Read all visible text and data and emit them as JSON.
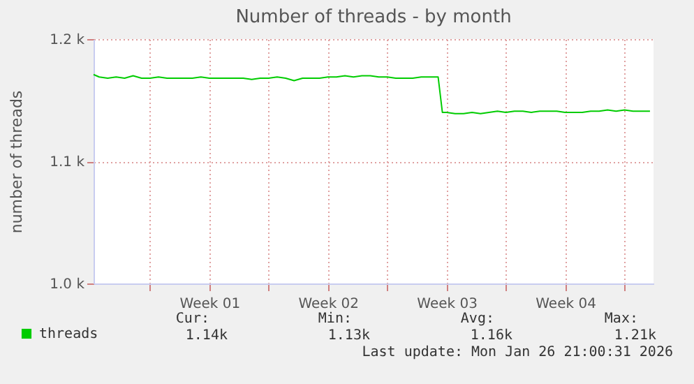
{
  "chart_data": {
    "type": "line",
    "title": "Number of threads - by month",
    "ylabel": "number of threads",
    "x": [
      "2025-12-25T16:00",
      "2025-12-26T00:00",
      "2025-12-26T12:00",
      "2025-12-27T00:00",
      "2025-12-27T12:00",
      "2025-12-28T00:00",
      "2025-12-28T12:00",
      "2025-12-29T00:00",
      "2025-12-29T12:00",
      "2025-12-30T00:00",
      "2025-12-30T12:00",
      "2025-12-31T00:00",
      "2025-12-31T12:00",
      "2026-01-01T00:00",
      "2026-01-01T12:00",
      "2026-01-02T00:00",
      "2026-01-02T12:00",
      "2026-01-03T00:00",
      "2026-01-03T12:00",
      "2026-01-04T00:00",
      "2026-01-04T12:00",
      "2026-01-05T00:00",
      "2026-01-05T12:00",
      "2026-01-06T00:00",
      "2026-01-06T12:00",
      "2026-01-07T00:00",
      "2026-01-07T12:00",
      "2026-01-08T00:00",
      "2026-01-08T12:00",
      "2026-01-09T00:00",
      "2026-01-09T12:00",
      "2026-01-10T00:00",
      "2026-01-10T12:00",
      "2026-01-11T00:00",
      "2026-01-11T12:00",
      "2026-01-12T00:00",
      "2026-01-12T12:00",
      "2026-01-13T00:00",
      "2026-01-13T12:00",
      "2026-01-14T00:00",
      "2026-01-14T12:00",
      "2026-01-15T00:00",
      "2026-01-15T06:00",
      "2026-01-15T12:00",
      "2026-01-16T00:00",
      "2026-01-16T12:00",
      "2026-01-17T00:00",
      "2026-01-17T12:00",
      "2026-01-18T00:00",
      "2026-01-18T12:00",
      "2026-01-19T00:00",
      "2026-01-19T12:00",
      "2026-01-20T00:00",
      "2026-01-20T12:00",
      "2026-01-21T00:00",
      "2026-01-21T12:00",
      "2026-01-22T00:00",
      "2026-01-22T12:00",
      "2026-01-23T00:00",
      "2026-01-23T12:00",
      "2026-01-24T00:00",
      "2026-01-24T12:00",
      "2026-01-25T00:00",
      "2026-01-25T12:00",
      "2026-01-26T00:00",
      "2026-01-26T12:00",
      "2026-01-27T00:00",
      "2026-01-27T12:00"
    ],
    "series": [
      {
        "name": "threads",
        "color": "#00cc00",
        "values": [
          1171,
          1169,
          1168,
          1169,
          1168,
          1170,
          1168,
          1168,
          1169,
          1168,
          1168,
          1168,
          1168,
          1169,
          1168,
          1168,
          1168,
          1168,
          1168,
          1167,
          1168,
          1168,
          1169,
          1168,
          1166,
          1168,
          1168,
          1168,
          1169,
          1169,
          1170,
          1169,
          1170,
          1170,
          1169,
          1169,
          1168,
          1168,
          1168,
          1169,
          1169,
          1169,
          1140,
          1140,
          1139,
          1139,
          1140,
          1139,
          1140,
          1141,
          1140,
          1141,
          1141,
          1140,
          1141,
          1141,
          1141,
          1140,
          1140,
          1140,
          1141,
          1141,
          1142,
          1141,
          1142,
          1141,
          1141,
          1141
        ]
      }
    ],
    "xlim": [
      "2025-12-25T16:00",
      "2026-01-27T17:00"
    ],
    "xticks": [
      {
        "value": "2025-12-29T00:00",
        "label": null
      },
      {
        "value": "2026-01-01T12:00",
        "label": "Week 01"
      },
      {
        "value": "2026-01-05T00:00",
        "label": null
      },
      {
        "value": "2026-01-08T12:00",
        "label": "Week 02"
      },
      {
        "value": "2026-01-12T00:00",
        "label": null
      },
      {
        "value": "2026-01-15T12:00",
        "label": "Week 03"
      },
      {
        "value": "2026-01-19T00:00",
        "label": null
      },
      {
        "value": "2026-01-22T12:00",
        "label": "Week 04"
      },
      {
        "value": "2026-01-26T00:00",
        "label": null
      }
    ],
    "ylim": [
      1000,
      1200
    ],
    "yticks": [
      {
        "value": 1000,
        "label": "1.0 k"
      },
      {
        "value": 1100,
        "label": "1.1 k"
      },
      {
        "value": 1200,
        "label": "1.2 k"
      }
    ],
    "grid": true,
    "legend": "bottom",
    "marker": "none",
    "line_style": "solid",
    "annotations": [
      "Cur:",
      "Min:",
      "Avg:",
      "Max:",
      "1.14k",
      "1.13k",
      "1.16k",
      "1.21k",
      "Last update: Mon Jan 26 21:00:31 2026"
    ]
  }
}
